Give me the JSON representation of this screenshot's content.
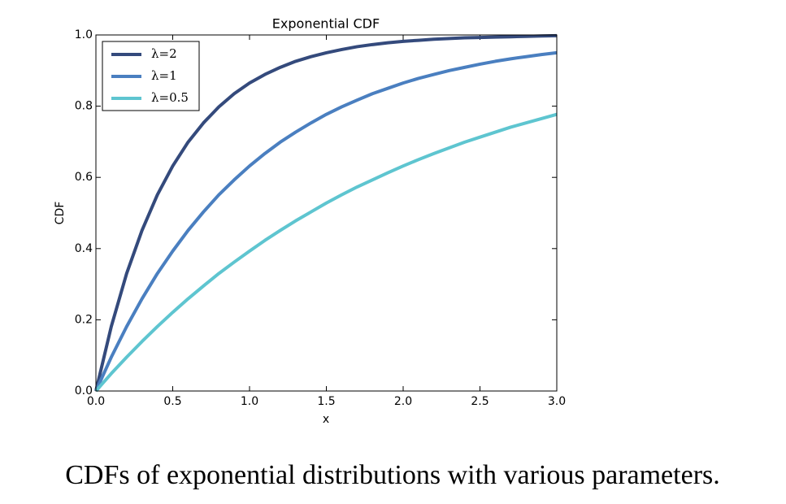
{
  "chart_data": {
    "type": "line",
    "title": "Exponential CDF",
    "xlabel": "x",
    "ylabel": "CDF",
    "x": [
      0,
      0.1,
      0.2,
      0.3,
      0.4,
      0.5,
      0.6,
      0.7,
      0.8,
      0.9,
      1.0,
      1.1,
      1.2,
      1.3,
      1.4,
      1.5,
      1.6,
      1.7,
      1.8,
      1.9,
      2.0,
      2.1,
      2.2,
      2.3,
      2.4,
      2.5,
      2.6,
      2.7,
      2.8,
      2.9,
      3.0
    ],
    "series": [
      {
        "name": "λ=2",
        "color": "#344a7c",
        "values": [
          0,
          0.181,
          0.33,
          0.451,
          0.551,
          0.632,
          0.699,
          0.753,
          0.798,
          0.835,
          0.865,
          0.889,
          0.909,
          0.926,
          0.939,
          0.95,
          0.959,
          0.967,
          0.973,
          0.978,
          0.982,
          0.985,
          0.988,
          0.99,
          0.992,
          0.993,
          0.994,
          0.995,
          0.996,
          0.997,
          0.998
        ]
      },
      {
        "name": "λ=1",
        "color": "#4a7fc0",
        "values": [
          0,
          0.095,
          0.181,
          0.259,
          0.33,
          0.393,
          0.451,
          0.503,
          0.551,
          0.593,
          0.632,
          0.667,
          0.699,
          0.727,
          0.753,
          0.777,
          0.798,
          0.817,
          0.835,
          0.85,
          0.865,
          0.878,
          0.889,
          0.9,
          0.909,
          0.918,
          0.926,
          0.933,
          0.939,
          0.945,
          0.95
        ]
      },
      {
        "name": "λ=0.5",
        "color": "#5ec5d0",
        "values": [
          0,
          0.049,
          0.095,
          0.139,
          0.181,
          0.221,
          0.259,
          0.295,
          0.33,
          0.362,
          0.393,
          0.423,
          0.451,
          0.478,
          0.503,
          0.528,
          0.551,
          0.573,
          0.593,
          0.613,
          0.632,
          0.65,
          0.667,
          0.683,
          0.699,
          0.713,
          0.727,
          0.741,
          0.753,
          0.765,
          0.777
        ]
      }
    ],
    "xlim": [
      0,
      3
    ],
    "xticks": [
      {
        "value": 0,
        "label": "0.0"
      },
      0.5,
      {
        "value": 1,
        "label": "1.0"
      },
      1.5,
      {
        "value": 2,
        "label": "2.0"
      },
      2.5,
      {
        "value": 3,
        "label": "3.0"
      }
    ],
    "ylim": [
      0,
      1
    ],
    "yticks": [
      {
        "value": 0,
        "label": "0.0"
      },
      0.2,
      0.4,
      0.6,
      0.8,
      {
        "value": 1,
        "label": "1.0"
      }
    ],
    "legend": "upper left"
  },
  "caption": "CDFs of exponential distributions with various parameters."
}
